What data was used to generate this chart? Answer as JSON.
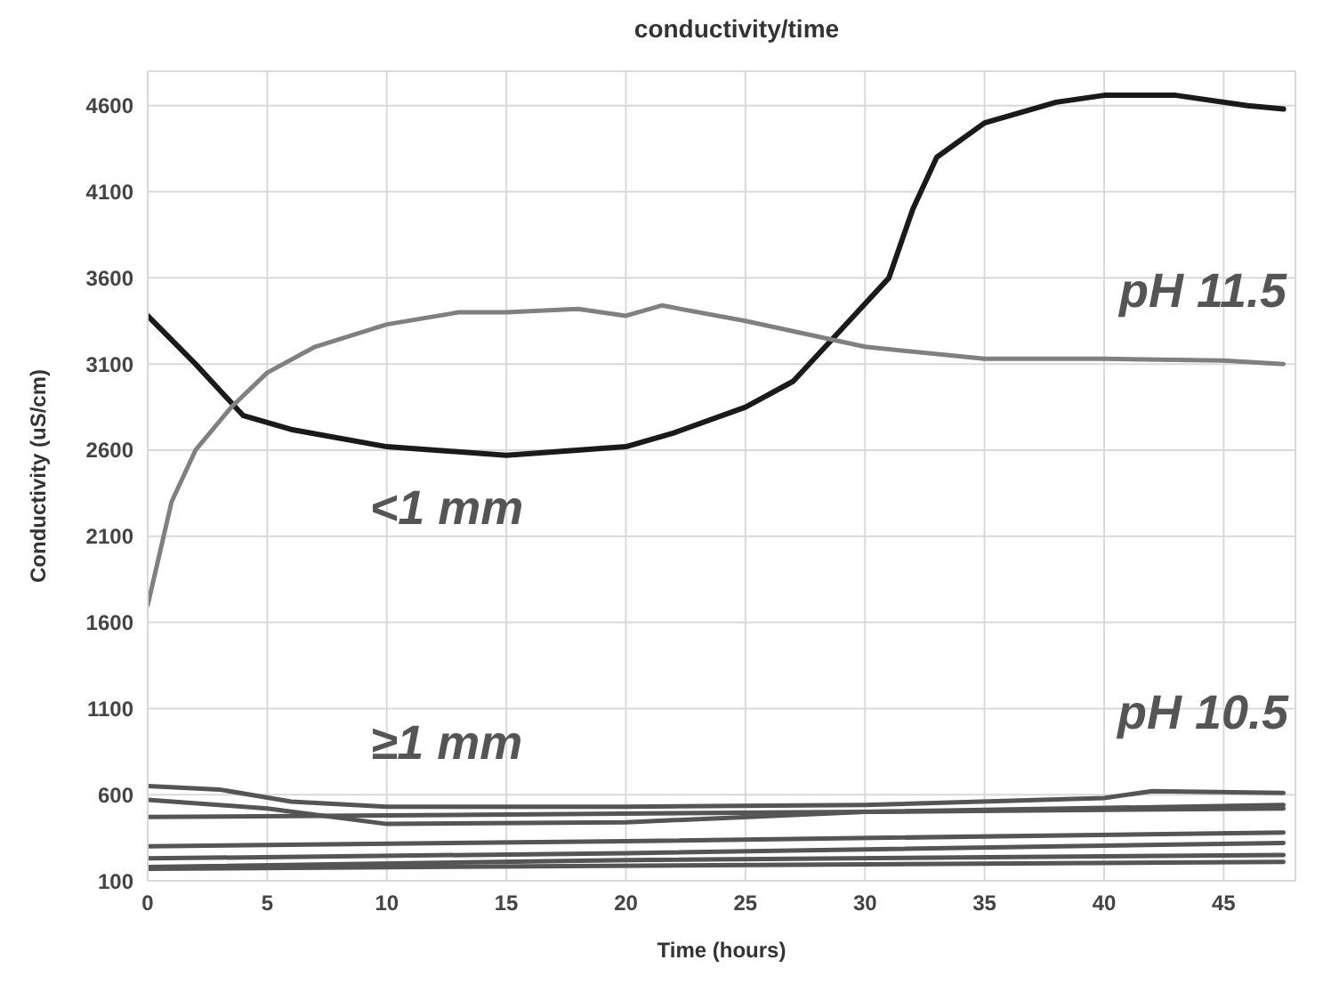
{
  "chart_data": {
    "type": "line",
    "title": "conductivity/time",
    "xlabel": "Time (hours)",
    "ylabel": "Conductivity (uS/cm)",
    "xlim": [
      0,
      48
    ],
    "xticks": [
      0,
      5,
      10,
      15,
      20,
      25,
      30,
      35,
      40,
      45
    ],
    "ylim": [
      100,
      4800
    ],
    "yticks": [
      100,
      600,
      1100,
      1600,
      2100,
      2600,
      3100,
      3600,
      4100,
      4600
    ],
    "grid": true,
    "legend": false,
    "marker": "none",
    "line_style": "solid",
    "series": [
      {
        "color": "#1a1a1a",
        "x": [
          0,
          2,
          4,
          6,
          10,
          15,
          20,
          22,
          25,
          27,
          29,
          31,
          32,
          33,
          35,
          38,
          40,
          43,
          46,
          47.5
        ],
        "values": [
          3380,
          3100,
          2800,
          2720,
          2620,
          2570,
          2620,
          2700,
          2850,
          3000,
          3300,
          3600,
          4000,
          4300,
          4500,
          4620,
          4660,
          4660,
          4600,
          4580
        ]
      },
      {
        "color": "#808080",
        "x": [
          0,
          0.5,
          1,
          2,
          3.5,
          5,
          7,
          10,
          13,
          15,
          18,
          20,
          21.5,
          25,
          30,
          35,
          40,
          45,
          47.5
        ],
        "values": [
          1700,
          2000,
          2300,
          2600,
          2850,
          3050,
          3200,
          3330,
          3400,
          3400,
          3420,
          3380,
          3440,
          3350,
          3200,
          3130,
          3130,
          3120,
          3100
        ]
      },
      {
        "color": "#555555",
        "x": [
          0,
          3,
          6,
          10,
          20,
          30,
          40,
          42,
          47.5
        ],
        "values": [
          650,
          630,
          560,
          530,
          530,
          540,
          580,
          620,
          610
        ]
      },
      {
        "color": "#555555",
        "x": [
          0,
          5,
          10,
          20,
          30,
          47.5
        ],
        "values": [
          570,
          520,
          430,
          440,
          500,
          540
        ]
      },
      {
        "color": "#555555",
        "x": [
          0,
          10,
          30,
          47.5
        ],
        "values": [
          470,
          480,
          500,
          520
        ]
      },
      {
        "color": "#555555",
        "x": [
          0,
          20,
          47.5
        ],
        "values": [
          300,
          330,
          380
        ]
      },
      {
        "color": "#555555",
        "x": [
          0,
          20,
          47.5
        ],
        "values": [
          230,
          260,
          320
        ]
      },
      {
        "color": "#555555",
        "x": [
          0,
          20,
          47.5
        ],
        "values": [
          180,
          220,
          250
        ]
      },
      {
        "color": "#555555",
        "x": [
          0,
          47.5
        ],
        "values": [
          170,
          210
        ]
      }
    ],
    "annotations": [
      "pH 11.5",
      "<1 mm",
      "pH 10.5",
      "≥1 mm"
    ]
  }
}
